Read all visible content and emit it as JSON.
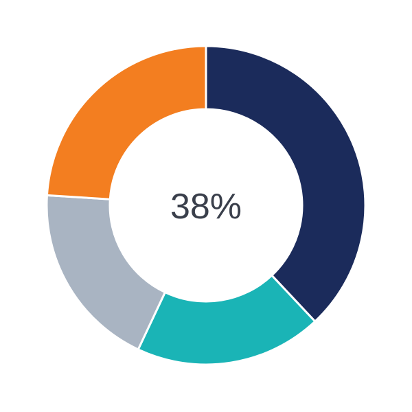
{
  "chart_data": {
    "type": "pie",
    "variant": "donut",
    "center_label": "38%",
    "start_angle": "top",
    "direction": "clockwise",
    "slices": [
      {
        "value": 38,
        "color": "#1b2b5b"
      },
      {
        "value": 19,
        "color": "#1ab4b6"
      },
      {
        "value": 19,
        "color": "#a9b4c2"
      },
      {
        "value": 24,
        "color": "#f37e20"
      }
    ],
    "legend": "none"
  }
}
